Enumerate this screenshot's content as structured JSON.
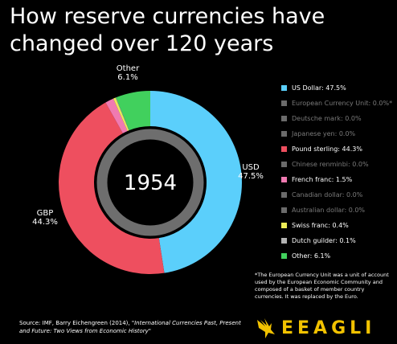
{
  "title_line1": "How reserve currencies have",
  "title_line2": "changed over 120 years",
  "chart_data": {
    "type": "pie",
    "center_label": "1954",
    "slices": [
      {
        "name": "USD",
        "legend_label": "US Dollar: 47.5%",
        "value": 47.5,
        "color": "#5bcffb",
        "visible": true,
        "outer_label": [
          "USD",
          "47.5%"
        ]
      },
      {
        "name": "European Currency Unit",
        "legend_label": "European Currency Unit: 0.0%*",
        "value": 0.0,
        "color": "#6b6b6b",
        "visible": false
      },
      {
        "name": "Deutsche mark",
        "legend_label": "Deutsche mark: 0.0%",
        "value": 0.0,
        "color": "#6b6b6b",
        "visible": false
      },
      {
        "name": "Japanese yen",
        "legend_label": "Japanese yen: 0.0%",
        "value": 0.0,
        "color": "#6b6b6b",
        "visible": false
      },
      {
        "name": "GBP",
        "legend_label": "Pound sterling: 44.3%",
        "value": 44.3,
        "color": "#ee4f5f",
        "visible": true,
        "outer_label": [
          "GBP",
          "44.3%"
        ]
      },
      {
        "name": "Chinese renminbi",
        "legend_label": "Chinese renminbi: 0.0%",
        "value": 0.0,
        "color": "#6b6b6b",
        "visible": false
      },
      {
        "name": "French franc",
        "legend_label": "French franc: 1.5%",
        "value": 1.5,
        "color": "#f07ab1",
        "visible": true
      },
      {
        "name": "Canadian dollar",
        "legend_label": "Canadian dollar: 0.0%",
        "value": 0.0,
        "color": "#6b6b6b",
        "visible": false
      },
      {
        "name": "Australian dollar",
        "legend_label": "Australian dollar: 0.0%",
        "value": 0.0,
        "color": "#6b6b6b",
        "visible": false
      },
      {
        "name": "Swiss franc",
        "legend_label": "Swiss franc: 0.4%",
        "value": 0.4,
        "color": "#ecec57",
        "visible": true
      },
      {
        "name": "Dutch guilder",
        "legend_label": "Dutch guilder: 0.1%",
        "value": 0.1,
        "color": "#b3b3b3",
        "visible": true
      },
      {
        "name": "Other",
        "legend_label": "Other: 6.1%",
        "value": 6.1,
        "color": "#41d05d",
        "visible": true,
        "outer_label": [
          "Other",
          "6.1%"
        ]
      }
    ]
  },
  "note": "*The European Currency Unit was a unit of account used by the European Economic Community and composed of a basket of member country currencies. It was replaced by the Euro.",
  "source_prefix": "Source: IMF, Barry Eichengreen (2014), ",
  "source_title": "\"International Currencies Past, Present and Future: Two Views from Economic History\"",
  "logo_text": "EEAGLI"
}
